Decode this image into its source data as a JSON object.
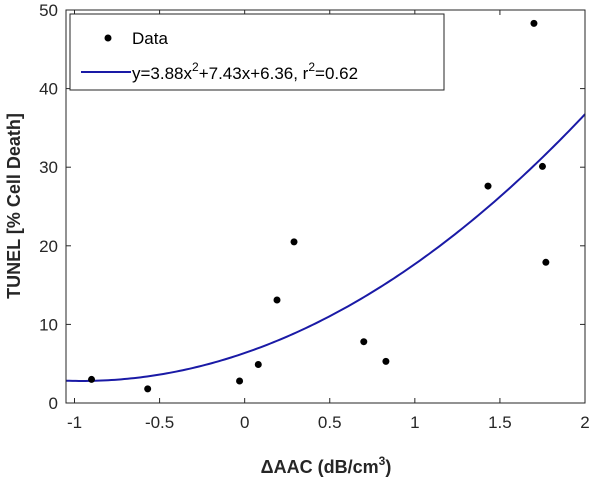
{
  "chart_data": {
    "type": "scatter",
    "xlabel_main": "ΔAAC (dB/cm",
    "xlabel_sup": "3",
    "xlabel_end": ")",
    "ylabel": "TUNEL [% Cell Death]",
    "xlim": [
      -1.05,
      2
    ],
    "ylim": [
      0,
      50
    ],
    "xticks": [
      "-1",
      "-0.5",
      "0",
      "0.5",
      "1",
      "1.5",
      "2"
    ],
    "xtick_values": [
      -1,
      -0.5,
      0,
      0.5,
      1,
      1.5,
      2
    ],
    "yticks": [
      "0",
      "10",
      "20",
      "30",
      "40",
      "50"
    ],
    "ytick_values": [
      0,
      10,
      20,
      30,
      40,
      50
    ],
    "grid": false,
    "legend_position": "top-left",
    "series": [
      {
        "name": "Data",
        "kind": "scatter",
        "color": "#000000",
        "points": [
          {
            "x": -0.9,
            "y": 3.0
          },
          {
            "x": -0.57,
            "y": 1.8
          },
          {
            "x": -0.03,
            "y": 2.8
          },
          {
            "x": 0.08,
            "y": 4.9
          },
          {
            "x": 0.19,
            "y": 13.1
          },
          {
            "x": 0.29,
            "y": 20.5
          },
          {
            "x": 0.7,
            "y": 7.8
          },
          {
            "x": 0.83,
            "y": 5.3
          },
          {
            "x": 1.43,
            "y": 27.6
          },
          {
            "x": 1.7,
            "y": 48.3
          },
          {
            "x": 1.75,
            "y": 30.1
          },
          {
            "x": 1.77,
            "y": 17.9
          }
        ]
      },
      {
        "kind": "fit",
        "color": "#1a1aa6",
        "coefficients": {
          "a": 3.88,
          "b": 7.43,
          "c": 6.36
        },
        "label_main": "y=3.88x",
        "label_sup1": "2",
        "label_mid": "+7.43x+6.36, r",
        "label_sup2": "2",
        "label_end": "=0.62"
      }
    ]
  }
}
